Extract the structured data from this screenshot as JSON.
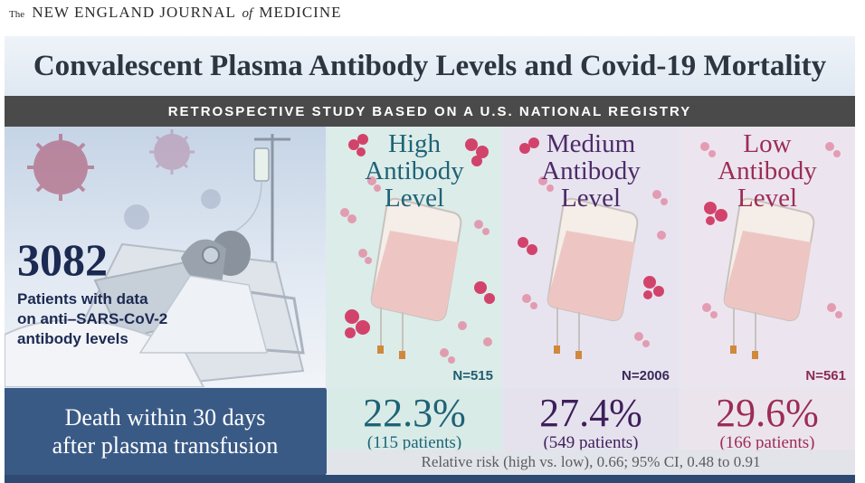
{
  "journal": {
    "the": "The",
    "name_a": "NEW ENGLAND JOURNAL",
    "of": "of",
    "name_b": "MEDICINE"
  },
  "title": "Convalescent Plasma Antibody Levels and Covid-19 Mortality",
  "banner": "RETROSPECTIVE STUDY BASED ON A U.S. NATIONAL REGISTRY",
  "patients": {
    "count": "3082",
    "description": "Patients with data\non anti–SARS-CoV-2\nantibody levels"
  },
  "outcome": "Death within 30 days\nafter plasma transfusion",
  "groups": [
    {
      "label": "High\nAntibody\nLevel",
      "n": "N=515",
      "percent": "22.3%",
      "patients": "(115 patients)"
    },
    {
      "label": "Medium\nAntibody\nLevel",
      "n": "N=2006",
      "percent": "27.4%",
      "patients": "(549 patients)"
    },
    {
      "label": "Low\nAntibody\nLevel",
      "n": "N=561",
      "percent": "29.6%",
      "patients": "(166 patients)"
    }
  ],
  "relative_risk": "Relative risk (high vs. low), 0.66; 95% CI, 0.48 to 0.91",
  "colors": {
    "frame": "#dfe8f2",
    "banner": "#4a4a4a",
    "outcome": "#3a5a86",
    "high": "#1f6377",
    "medium": "#4e2b68",
    "low": "#9c2d55",
    "antibody": "#d2436b"
  }
}
